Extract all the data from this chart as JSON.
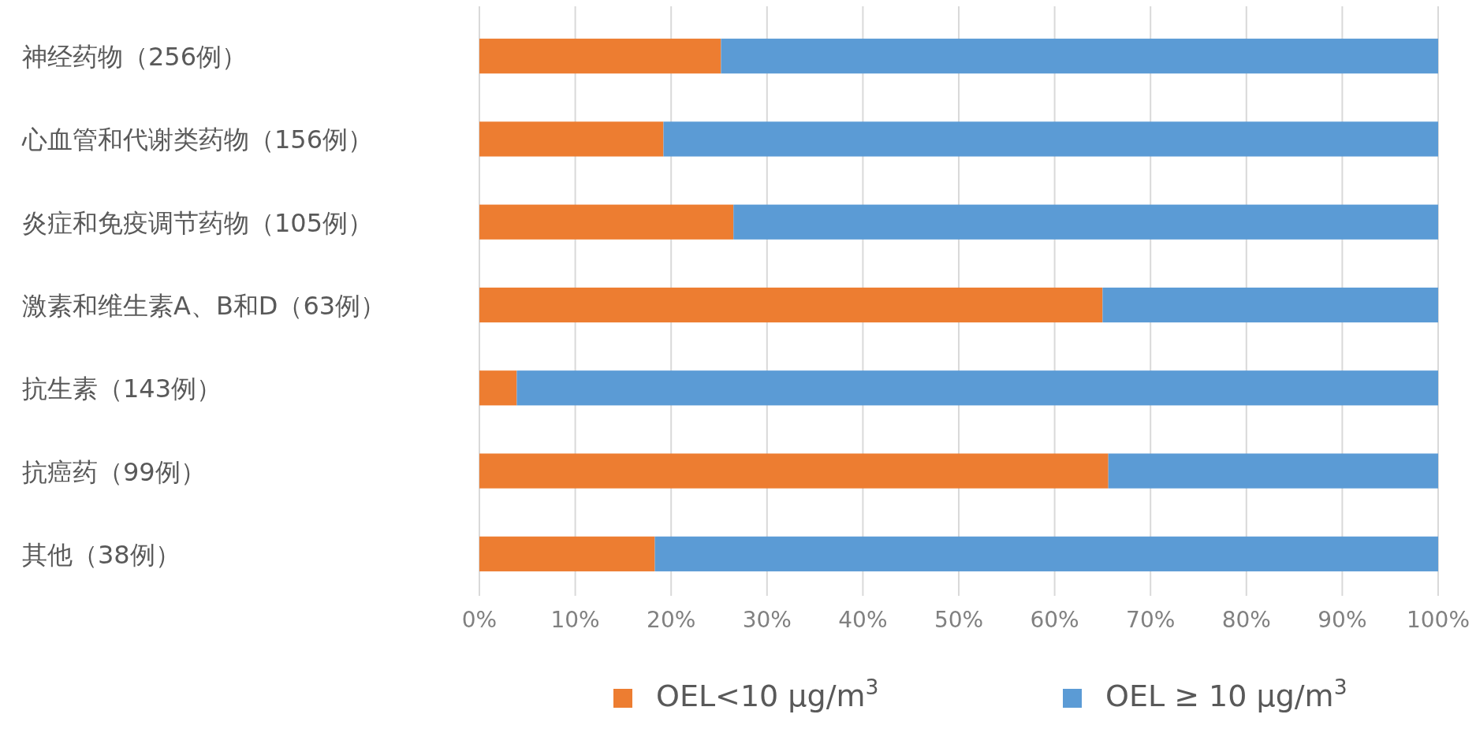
{
  "chart_data": {
    "type": "bar",
    "orientation": "horizontal",
    "stacked": true,
    "categories": [
      "神经药物（256例）",
      "心血管和代谢类药物（156例）",
      "炎症和免疫调节药物（105例）",
      "激素和维生素A、B和D（63例）",
      "抗生素（143例）",
      "抗癌药（99例）",
      "其他（38例）"
    ],
    "series": [
      {
        "name": "OEL<10 μg/m$^{3}$",
        "color": "#ed7d31",
        "values": [
          25.2,
          19.2,
          26.5,
          65.0,
          3.9,
          65.6,
          18.3
        ]
      },
      {
        "name": "OEL ≥ 10 μg/m$^{3}$",
        "color": "#5b9bd5",
        "values": [
          74.8,
          80.8,
          73.5,
          35.0,
          96.1,
          34.4,
          81.7
        ]
      }
    ],
    "xlim": [
      0,
      100
    ],
    "xticks": [
      {
        "value": 0,
        "label": "0%"
      },
      {
        "value": 10,
        "label": "10%"
      },
      {
        "value": 20,
        "label": "20%"
      },
      {
        "value": 30,
        "label": "30%"
      },
      {
        "value": 40,
        "label": "40%"
      },
      {
        "value": 50,
        "label": "50%"
      },
      {
        "value": 60,
        "label": "60%"
      },
      {
        "value": 70,
        "label": "70%"
      },
      {
        "value": 80,
        "label": "80%"
      },
      {
        "value": 90,
        "label": "90%"
      },
      {
        "value": 100,
        "label": "100%"
      }
    ],
    "grid": "x",
    "legend": "bottom"
  }
}
